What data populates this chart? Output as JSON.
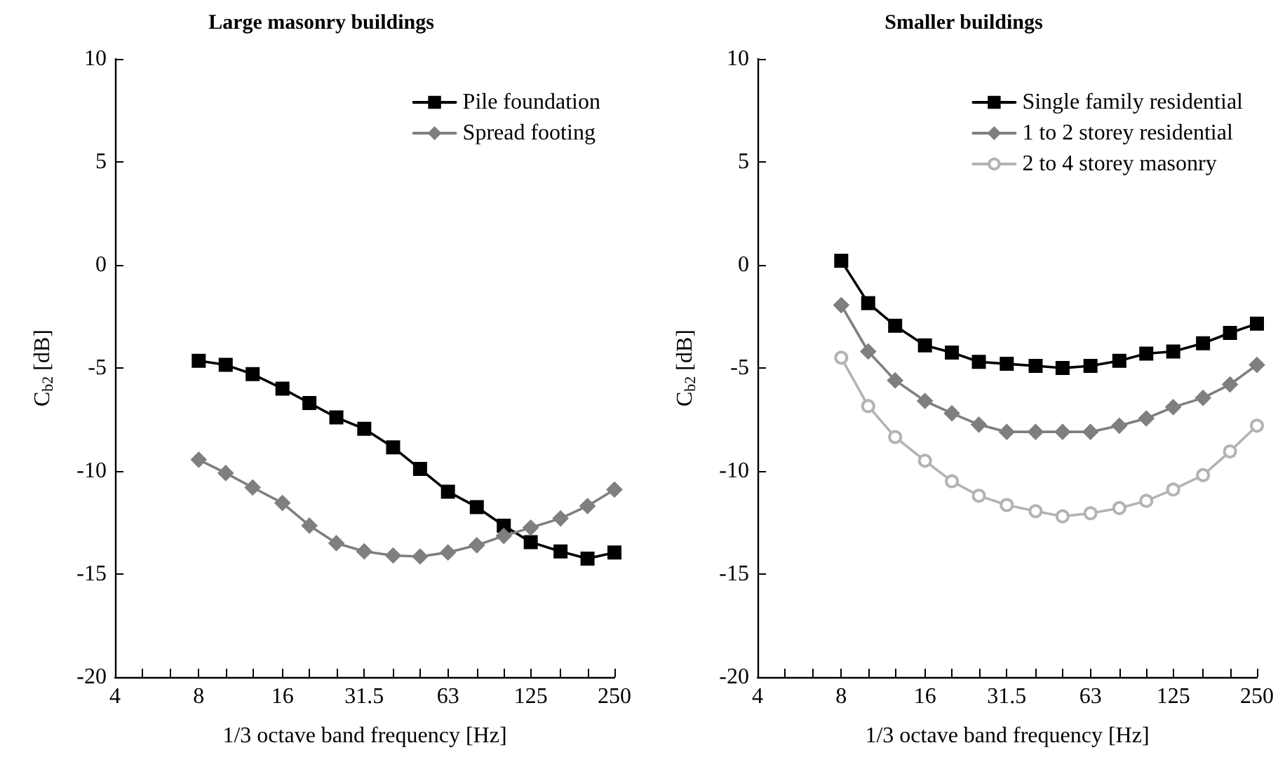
{
  "chart_data": [
    {
      "type": "line",
      "title": "Large masonry buildings",
      "xlabel": "1/3 octave band frequency [Hz]",
      "ylabel": "C$_{b2}$ [dB]",
      "log": "x",
      "grid": false,
      "legend": "top right",
      "x": [
        8,
        10,
        12.5,
        16,
        20,
        25,
        31.5,
        40,
        50,
        63,
        80,
        100,
        125,
        160,
        200,
        250
      ],
      "xlim": [
        4,
        250
      ],
      "xticks": [
        4,
        {
          "value": 5,
          "label": null
        },
        {
          "value": 6.3,
          "label": null
        },
        8,
        {
          "value": 10,
          "label": null
        },
        {
          "value": 12.5,
          "label": null
        },
        16,
        {
          "value": 20,
          "label": null
        },
        {
          "value": 25,
          "label": null
        },
        31.5,
        {
          "value": 40,
          "label": null
        },
        {
          "value": 50,
          "label": null
        },
        63,
        {
          "value": 80,
          "label": null
        },
        {
          "value": 100,
          "label": null
        },
        125,
        {
          "value": 160,
          "label": null
        },
        {
          "value": 200,
          "label": null
        },
        250
      ],
      "ylim": [
        -20,
        10
      ],
      "yticks": [
        -20,
        -15,
        -10,
        -5,
        0,
        5,
        10
      ],
      "series": [
        {
          "name": "Pile foundation",
          "color": "#000000",
          "marker": "square",
          "values": [
            -4.65,
            -4.85,
            -5.3,
            -6.0,
            -6.7,
            -7.4,
            -7.95,
            -8.85,
            -9.9,
            -11.0,
            -11.75,
            -12.65,
            -13.45,
            -13.9,
            -14.25,
            -13.95
          ]
        },
        {
          "name": "Spread footing",
          "color": "#7f7f7f",
          "marker": "diamond",
          "values": [
            -9.45,
            -10.1,
            -10.8,
            -11.55,
            -12.65,
            -13.5,
            -13.9,
            -14.1,
            -14.15,
            -13.95,
            -13.6,
            -13.15,
            -12.75,
            -12.3,
            -11.7,
            -10.9
          ]
        }
      ]
    },
    {
      "type": "line",
      "title": "Smaller buildings",
      "xlabel": "1/3 octave band frequency [Hz]",
      "ylabel": "C$_{b2}$ [dB]",
      "log": "x",
      "grid": false,
      "legend": "top right",
      "x": [
        8,
        10,
        12.5,
        16,
        20,
        25,
        31.5,
        40,
        50,
        63,
        80,
        100,
        125,
        160,
        200,
        250
      ],
      "xlim": [
        4,
        250
      ],
      "xticks": [
        4,
        {
          "value": 5,
          "label": null
        },
        {
          "value": 6.3,
          "label": null
        },
        8,
        {
          "value": 10,
          "label": null
        },
        {
          "value": 12.5,
          "label": null
        },
        16,
        {
          "value": 20,
          "label": null
        },
        {
          "value": 25,
          "label": null
        },
        31.5,
        {
          "value": 40,
          "label": null
        },
        {
          "value": 50,
          "label": null
        },
        63,
        {
          "value": 80,
          "label": null
        },
        {
          "value": 100,
          "label": null
        },
        125,
        {
          "value": 160,
          "label": null
        },
        {
          "value": 200,
          "label": null
        },
        250
      ],
      "ylim": [
        -20,
        10
      ],
      "yticks": [
        -20,
        -15,
        -10,
        -5,
        0,
        5,
        10
      ],
      "series": [
        {
          "name": "Single family residential",
          "color": "#000000",
          "marker": "square",
          "values": [
            0.2,
            -1.85,
            -2.95,
            -3.9,
            -4.25,
            -4.7,
            -4.8,
            -4.9,
            -5.0,
            -4.9,
            -4.65,
            -4.3,
            -4.2,
            -3.8,
            -3.3,
            -2.85
          ]
        },
        {
          "name": "1 to 2 storey residential",
          "color": "#7f7f7f",
          "marker": "diamond",
          "values": [
            -1.95,
            -4.2,
            -5.6,
            -6.6,
            -7.2,
            -7.75,
            -8.1,
            -8.1,
            -8.1,
            -8.1,
            -7.8,
            -7.45,
            -6.9,
            -6.45,
            -5.8,
            -4.85
          ]
        },
        {
          "name": "2 to 4 storey masonry",
          "color": "#b3b3b3",
          "marker": "circle",
          "values": [
            -4.5,
            -6.85,
            -8.35,
            -9.5,
            -10.5,
            -11.2,
            -11.65,
            -11.95,
            -12.2,
            -12.05,
            -11.8,
            -11.45,
            -10.9,
            -10.2,
            -9.05,
            -7.8
          ]
        }
      ]
    }
  ]
}
